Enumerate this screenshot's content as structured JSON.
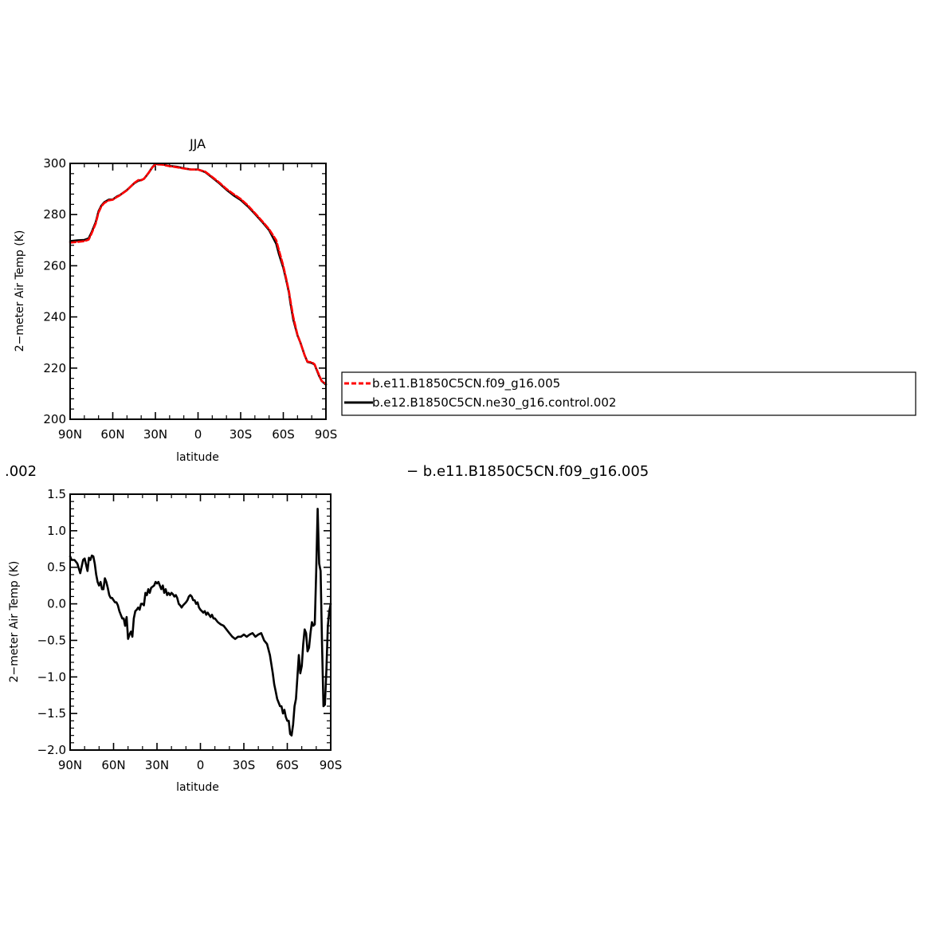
{
  "colors": {
    "series_red": "#ff0000",
    "series_black": "#000000",
    "axis": "#000000",
    "background": "#ffffff"
  },
  "legend": {
    "entries": [
      {
        "label": "b.e11.B1850C5CN.f09_g16.005",
        "color": "#ff0000",
        "style": "dashed"
      },
      {
        "label": "b.e12.B1850C5CN.ne30_g16.control.002",
        "color": "#000000",
        "style": "solid"
      }
    ]
  },
  "diff_title": {
    "left": ".002",
    "right": "− b.e11.B1850C5CN.f09_g16.005"
  },
  "chart_data": [
    {
      "type": "line",
      "title": "JJA",
      "xlabel": "latitude",
      "ylabel": "2−meter Air Temp (K)",
      "xlim": [
        90,
        -90
      ],
      "ylim": [
        200,
        300
      ],
      "x_ticks": [
        90,
        60,
        30,
        0,
        -30,
        -60,
        -90
      ],
      "x_tick_labels": [
        "90N",
        "60N",
        "30N",
        "0",
        "30S",
        "60S",
        "90S"
      ],
      "y_ticks": [
        200,
        220,
        240,
        260,
        280,
        300
      ],
      "y_tick_labels": [
        "200",
        "220",
        "240",
        "260",
        "280",
        "300"
      ],
      "legend_position": "right",
      "series": [
        {
          "name": "b.e11.B1850C5CN.f09_g16.005",
          "color": "#ff0000",
          "style": "dashed",
          "x": [
            90,
            85,
            80,
            77,
            75,
            72,
            70,
            68,
            66,
            63,
            60,
            57,
            55,
            50,
            45,
            42,
            40,
            38,
            35,
            32,
            30,
            28,
            25,
            22,
            20,
            15,
            10,
            5,
            0,
            -5,
            -10,
            -15,
            -20,
            -25,
            -30,
            -35,
            -40,
            -45,
            -50,
            -55,
            -57,
            -60,
            -62,
            -64,
            -65,
            -67,
            -70,
            -72,
            -75,
            -77,
            -80,
            -82,
            -85,
            -87,
            -90
          ],
          "y": [
            269,
            269.3,
            269.6,
            270.2,
            272.5,
            276.5,
            280.8,
            283.2,
            284.5,
            285.5,
            285.8,
            286.9,
            287.5,
            289.5,
            292.3,
            293.5,
            293.4,
            294,
            296.2,
            298.5,
            299.6,
            299.6,
            299.5,
            299.1,
            298.9,
            298.5,
            298,
            297.6,
            297.6,
            296.8,
            294.7,
            292.5,
            290,
            288,
            286.1,
            283.6,
            280.6,
            277.5,
            274.3,
            270,
            266,
            260,
            255,
            250,
            246.5,
            240,
            233,
            230,
            225,
            222.5,
            222.3,
            221.5,
            217.5,
            215,
            213.8
          ]
        },
        {
          "name": "b.e12.B1850C5CN.ne30_g16.control.002",
          "color": "#000000",
          "style": "solid",
          "x": [
            90,
            85,
            80,
            77,
            75,
            72,
            70,
            68,
            66,
            63,
            60,
            57,
            55,
            50,
            45,
            42,
            40,
            38,
            35,
            32,
            30,
            28,
            25,
            22,
            20,
            15,
            10,
            5,
            0,
            -5,
            -10,
            -15,
            -20,
            -25,
            -30,
            -35,
            -40,
            -45,
            -50,
            -55,
            -57,
            -60,
            -62,
            -64,
            -65,
            -67,
            -70,
            -72,
            -75,
            -77,
            -80,
            -82,
            -85,
            -87,
            -90
          ],
          "y": [
            269.6,
            269.9,
            270.1,
            270.7,
            273,
            277,
            281.3,
            283.5,
            284.8,
            285.8,
            285.9,
            287.1,
            287.6,
            289.6,
            292.2,
            293.2,
            293.5,
            294,
            296.1,
            298.6,
            299.8,
            299.8,
            299.7,
            299.2,
            299,
            298.7,
            298.1,
            297.6,
            297.6,
            296.6,
            294.5,
            292.2,
            289.7,
            287.5,
            285.7,
            283.2,
            280.3,
            277.2,
            273.9,
            268.6,
            264.5,
            259.2,
            254.5,
            249.5,
            245.5,
            239,
            232.8,
            230,
            225,
            222.4,
            222,
            221.4,
            217.2,
            215,
            213.5
          ]
        }
      ]
    },
    {
      "type": "line",
      "title": "",
      "xlabel": "latitude",
      "ylabel": "2−meter Air Temp (K)",
      "xlim": [
        90,
        -90
      ],
      "ylim": [
        -2.0,
        1.5
      ],
      "x_ticks": [
        90,
        60,
        30,
        0,
        -30,
        -60,
        -90
      ],
      "x_tick_labels": [
        "90N",
        "60N",
        "30N",
        "0",
        "30S",
        "60S",
        "90S"
      ],
      "y_ticks": [
        -2.0,
        -1.5,
        -1.0,
        -0.5,
        0.0,
        0.5,
        1.0,
        1.5
      ],
      "y_tick_labels": [
        "−2.0",
        "−1.5",
        "−1.0",
        "−0.5",
        "0.0",
        "0.5",
        "1.0",
        "1.5"
      ],
      "series": [
        {
          "color": "#000000",
          "style": "solid",
          "x": [
            90,
            89,
            87,
            85,
            83,
            81,
            80,
            78,
            77,
            76,
            75,
            74,
            73,
            72,
            71,
            70,
            69,
            68,
            67,
            66,
            65,
            64,
            63,
            62,
            61,
            60,
            59,
            58,
            57,
            56,
            55,
            54,
            53,
            52,
            51,
            50,
            49,
            48,
            47,
            46,
            45,
            44,
            43,
            42,
            41,
            40,
            39,
            38,
            37,
            36,
            35,
            34,
            32,
            31,
            30,
            29,
            28,
            27,
            26,
            25,
            24,
            23,
            22,
            21,
            20,
            19,
            18,
            17,
            16,
            15,
            14,
            13,
            12,
            11,
            10,
            9,
            8,
            7,
            6,
            5,
            4,
            3,
            2,
            1,
            0,
            -1,
            -2,
            -3,
            -4,
            -5,
            -6,
            -7,
            -8,
            -9,
            -10,
            -12,
            -14,
            -16,
            -18,
            -20,
            -22,
            -24,
            -26,
            -28,
            -30,
            -32,
            -34,
            -36,
            -38,
            -40,
            -42,
            -44,
            -46,
            -48,
            -50,
            -51,
            -52,
            -53,
            -54,
            -55,
            -56,
            -57,
            -58,
            -59,
            -60,
            -61,
            -62,
            -63,
            -64,
            -65,
            -66,
            -67,
            -68,
            -69,
            -70,
            -71,
            -72,
            -73,
            -74,
            -75,
            -76,
            -77,
            -78,
            -79,
            -80,
            -81,
            -82,
            -83,
            -84,
            -85,
            -86,
            -87,
            -88,
            -89,
            -90
          ],
          "y": [
            0.65,
            0.6,
            0.6,
            0.55,
            0.42,
            0.6,
            0.62,
            0.45,
            0.63,
            0.6,
            0.66,
            0.65,
            0.55,
            0.4,
            0.3,
            0.25,
            0.3,
            0.2,
            0.2,
            0.35,
            0.3,
            0.22,
            0.12,
            0.08,
            0.08,
            0.05,
            0.02,
            0.02,
            -0.02,
            -0.1,
            -0.15,
            -0.2,
            -0.2,
            -0.3,
            -0.18,
            -0.48,
            -0.42,
            -0.38,
            -0.45,
            -0.2,
            -0.1,
            -0.08,
            -0.05,
            -0.08,
            0.0,
            0.0,
            -0.02,
            0.15,
            0.12,
            0.2,
            0.15,
            0.22,
            0.25,
            0.3,
            0.28,
            0.3,
            0.25,
            0.2,
            0.25,
            0.15,
            0.2,
            0.12,
            0.15,
            0.12,
            0.15,
            0.13,
            0.1,
            0.12,
            0.08,
            0.0,
            -0.02,
            -0.05,
            -0.02,
            0.0,
            0.02,
            0.05,
            0.1,
            0.12,
            0.1,
            0.05,
            0.05,
            0.0,
            0.02,
            -0.05,
            -0.08,
            -0.1,
            -0.12,
            -0.1,
            -0.15,
            -0.12,
            -0.15,
            -0.18,
            -0.15,
            -0.2,
            -0.2,
            -0.25,
            -0.28,
            -0.3,
            -0.35,
            -0.4,
            -0.45,
            -0.48,
            -0.45,
            -0.45,
            -0.42,
            -0.45,
            -0.42,
            -0.4,
            -0.45,
            -0.42,
            -0.4,
            -0.5,
            -0.55,
            -0.7,
            -0.95,
            -1.1,
            -1.2,
            -1.3,
            -1.35,
            -1.4,
            -1.4,
            -1.5,
            -1.45,
            -1.55,
            -1.6,
            -1.6,
            -1.78,
            -1.8,
            -1.65,
            -1.4,
            -1.3,
            -1.0,
            -0.7,
            -0.95,
            -0.85,
            -0.55,
            -0.35,
            -0.4,
            -0.65,
            -0.6,
            -0.4,
            -0.25,
            -0.3,
            -0.28,
            0.45,
            1.3,
            0.55,
            0.45,
            -0.55,
            -1.4,
            -1.38,
            -0.9,
            -0.3,
            -0.1,
            0.0
          ]
        }
      ]
    }
  ]
}
